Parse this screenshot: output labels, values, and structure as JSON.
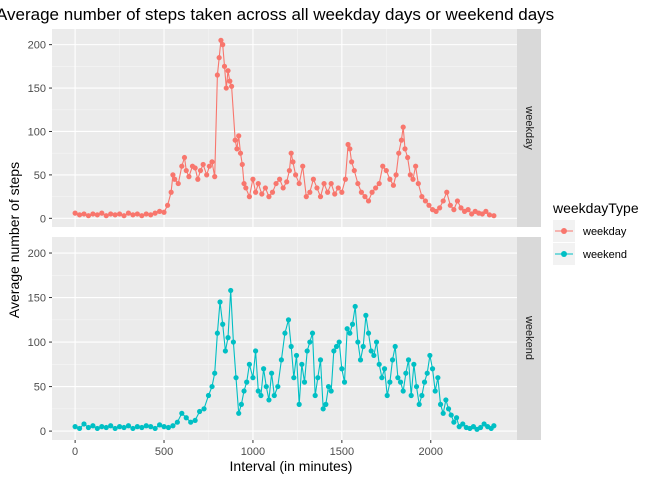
{
  "chart_data": {
    "type": "line",
    "title": "Average number of steps taken across all weekday days or weekend days",
    "xlabel": "Interval (in minutes)",
    "ylabel": "Average number of steps",
    "xlim": [
      -130,
      2485
    ],
    "ylim": [
      -10,
      218
    ],
    "x_ticks": [
      0,
      500,
      1000,
      1500,
      2000
    ],
    "x_tick_labels": [
      "0",
      "500",
      "1000",
      "1500",
      "2000"
    ],
    "y_ticks": [
      0,
      50,
      100,
      150,
      200
    ],
    "y_tick_labels": [
      "0",
      "50",
      "100",
      "150",
      "200"
    ],
    "grid": true,
    "facet_by": "weekdayType",
    "legend": {
      "title": "weekdayType",
      "position": "right",
      "entries": [
        {
          "label": "weekday",
          "color": "#F8766D"
        },
        {
          "label": "weekend",
          "color": "#00BFC4"
        }
      ]
    },
    "series": [
      {
        "name": "weekday",
        "color": "#F8766D",
        "x": [
          0,
          25,
          50,
          75,
          100,
          125,
          150,
          175,
          200,
          225,
          250,
          275,
          300,
          325,
          350,
          375,
          400,
          425,
          450,
          475,
          500,
          520,
          540,
          550,
          560,
          580,
          600,
          615,
          625,
          640,
          660,
          675,
          690,
          705,
          720,
          740,
          755,
          770,
          785,
          800,
          810,
          820,
          830,
          840,
          850,
          860,
          870,
          880,
          900,
          910,
          920,
          930,
          940,
          950,
          960,
          980,
          1000,
          1015,
          1030,
          1050,
          1070,
          1090,
          1110,
          1130,
          1150,
          1170,
          1190,
          1205,
          1215,
          1225,
          1240,
          1260,
          1280,
          1300,
          1320,
          1340,
          1360,
          1380,
          1400,
          1420,
          1440,
          1460,
          1480,
          1500,
          1520,
          1535,
          1545,
          1555,
          1570,
          1590,
          1610,
          1630,
          1650,
          1670,
          1690,
          1710,
          1730,
          1750,
          1770,
          1790,
          1805,
          1820,
          1835,
          1845,
          1855,
          1870,
          1885,
          1900,
          1915,
          1930,
          1950,
          1970,
          1990,
          2010,
          2030,
          2050,
          2070,
          2090,
          2110,
          2130,
          2150,
          2170,
          2190,
          2210,
          2230,
          2250,
          2270,
          2290,
          2310,
          2330,
          2355
        ],
        "y": [
          6,
          4,
          5,
          3,
          5,
          4,
          6,
          3,
          5,
          4,
          5,
          3,
          6,
          4,
          5,
          3,
          5,
          4,
          6,
          8,
          7,
          15,
          30,
          50,
          45,
          40,
          60,
          70,
          55,
          48,
          60,
          58,
          45,
          55,
          62,
          50,
          60,
          65,
          48,
          165,
          185,
          205,
          200,
          175,
          150,
          170,
          158,
          152,
          90,
          80,
          95,
          75,
          62,
          40,
          35,
          25,
          45,
          30,
          40,
          28,
          35,
          25,
          30,
          40,
          45,
          35,
          42,
          55,
          75,
          65,
          50,
          40,
          60,
          25,
          30,
          45,
          35,
          25,
          40,
          30,
          40,
          28,
          35,
          30,
          45,
          85,
          80,
          65,
          55,
          40,
          30,
          25,
          20,
          30,
          35,
          40,
          60,
          55,
          45,
          38,
          50,
          75,
          90,
          105,
          80,
          70,
          50,
          45,
          60,
          40,
          25,
          20,
          15,
          10,
          8,
          12,
          20,
          30,
          15,
          10,
          20,
          12,
          8,
          10,
          5,
          8,
          6,
          5,
          8,
          4,
          3
        ],
        "points_x": [
          0,
          25,
          50,
          75,
          100,
          125,
          150,
          175,
          200,
          225,
          250,
          275,
          300,
          325,
          350,
          375,
          400,
          425,
          450,
          475,
          500,
          520,
          540,
          550,
          560,
          580,
          600,
          615,
          625,
          640,
          660,
          675,
          690,
          705,
          720,
          740,
          755,
          770,
          785,
          800,
          810,
          820,
          830,
          840,
          850,
          860,
          870,
          880,
          900,
          910,
          920,
          930,
          940,
          950,
          960,
          980,
          1000,
          1015,
          1030,
          1050,
          1070,
          1090,
          1110,
          1130,
          1150,
          1170,
          1190,
          1205,
          1215,
          1225,
          1240,
          1260,
          1280,
          1300,
          1320,
          1340,
          1360,
          1380,
          1400,
          1420,
          1440,
          1460,
          1480,
          1500,
          1520,
          1535,
          1545,
          1555,
          1570,
          1590,
          1610,
          1630,
          1650,
          1670,
          1690,
          1710,
          1730,
          1750,
          1770,
          1790,
          1805,
          1820,
          1835,
          1845,
          1855,
          1870,
          1885,
          1900,
          1915,
          1930,
          1950,
          1970,
          1990,
          2010,
          2030,
          2050,
          2070,
          2090,
          2110,
          2130,
          2150,
          2170,
          2190,
          2210,
          2230,
          2250,
          2270,
          2290,
          2310,
          2330,
          2355
        ]
      },
      {
        "name": "weekend",
        "color": "#00BFC4",
        "x": [
          0,
          25,
          50,
          75,
          100,
          125,
          150,
          175,
          200,
          225,
          250,
          275,
          300,
          325,
          350,
          375,
          400,
          425,
          450,
          475,
          500,
          525,
          550,
          575,
          600,
          625,
          650,
          675,
          700,
          725,
          750,
          770,
          785,
          800,
          815,
          830,
          845,
          860,
          875,
          890,
          905,
          920,
          935,
          950,
          965,
          980,
          1000,
          1015,
          1030,
          1045,
          1060,
          1075,
          1090,
          1105,
          1120,
          1140,
          1160,
          1180,
          1200,
          1215,
          1230,
          1245,
          1260,
          1275,
          1290,
          1305,
          1320,
          1335,
          1350,
          1365,
          1380,
          1395,
          1410,
          1425,
          1440,
          1455,
          1470,
          1485,
          1500,
          1515,
          1530,
          1545,
          1560,
          1575,
          1590,
          1605,
          1620,
          1635,
          1650,
          1665,
          1680,
          1695,
          1710,
          1725,
          1740,
          1755,
          1770,
          1785,
          1800,
          1815,
          1830,
          1845,
          1860,
          1875,
          1890,
          1905,
          1920,
          1935,
          1950,
          1965,
          1980,
          1995,
          2010,
          2025,
          2040,
          2055,
          2070,
          2085,
          2100,
          2115,
          2130,
          2145,
          2160,
          2180,
          2200,
          2220,
          2240,
          2260,
          2280,
          2300,
          2320,
          2340,
          2355
        ],
        "y": [
          5,
          3,
          8,
          4,
          6,
          3,
          5,
          4,
          6,
          3,
          5,
          4,
          6,
          3,
          5,
          4,
          6,
          5,
          3,
          7,
          5,
          4,
          6,
          10,
          20,
          15,
          10,
          12,
          22,
          25,
          40,
          50,
          65,
          110,
          145,
          120,
          90,
          105,
          158,
          100,
          60,
          20,
          30,
          45,
          55,
          75,
          60,
          90,
          45,
          40,
          70,
          50,
          35,
          65,
          40,
          50,
          80,
          110,
          125,
          95,
          60,
          85,
          30,
          75,
          55,
          90,
          100,
          110,
          40,
          60,
          80,
          25,
          30,
          50,
          45,
          90,
          95,
          100,
          70,
          55,
          115,
          110,
          120,
          140,
          100,
          80,
          95,
          130,
          110,
          90,
          85,
          100,
          75,
          60,
          70,
          40,
          55,
          80,
          95,
          60,
          55,
          45,
          65,
          80,
          40,
          75,
          50,
          30,
          40,
          55,
          65,
          85,
          70,
          45,
          60,
          30,
          20,
          35,
          25,
          18,
          10,
          15,
          5,
          8,
          4,
          3,
          5,
          2,
          4,
          8,
          5,
          3,
          6
        ]
      }
    ],
    "facets": [
      {
        "label": "weekday",
        "series": "weekday"
      },
      {
        "label": "weekend",
        "series": "weekend"
      }
    ]
  }
}
